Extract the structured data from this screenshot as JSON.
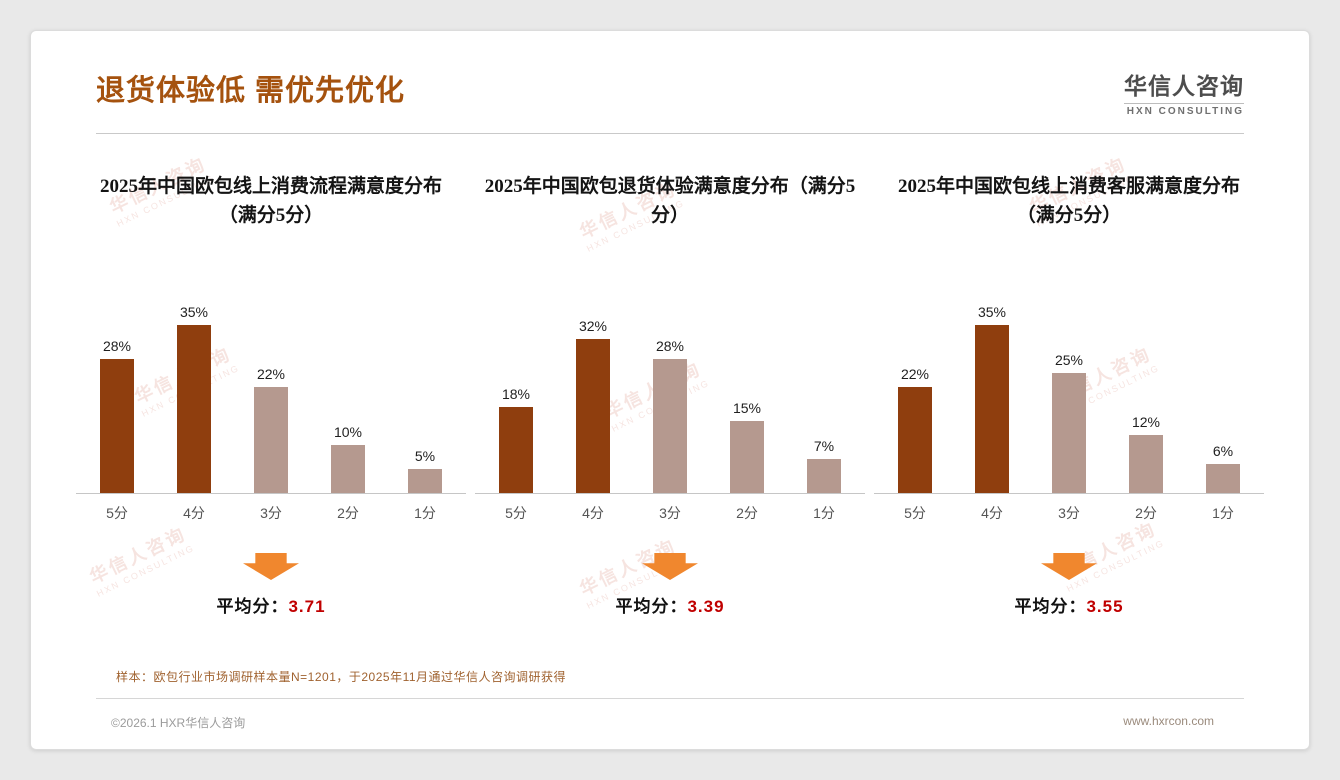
{
  "header": {
    "title": "退货体验低 需优先优化",
    "logo_name": "华信人咨询",
    "logo_sub": "HXN CONSULTING"
  },
  "labels": {
    "avg_prefix": "平均分："
  },
  "chart_data": [
    {
      "type": "bar",
      "title": "2025年中国欧包线上消费流程满意度分布（满分5分）",
      "categories": [
        "5分",
        "4分",
        "3分",
        "2分",
        "1分"
      ],
      "values": [
        28,
        35,
        22,
        10,
        5
      ],
      "unit": "%",
      "ylim": [
        0,
        40
      ],
      "average": "3.71"
    },
    {
      "type": "bar",
      "title": "2025年中国欧包退货体验满意度分布（满分5分）",
      "categories": [
        "5分",
        "4分",
        "3分",
        "2分",
        "1分"
      ],
      "values": [
        18,
        32,
        28,
        15,
        7
      ],
      "unit": "%",
      "ylim": [
        0,
        40
      ],
      "average": "3.39"
    },
    {
      "type": "bar",
      "title": "2025年中国欧包线上消费客服满意度分布（满分5分）",
      "categories": [
        "5分",
        "4分",
        "3分",
        "2分",
        "1分"
      ],
      "values": [
        22,
        35,
        25,
        12,
        6
      ],
      "unit": "%",
      "ylim": [
        0,
        40
      ],
      "average": "3.55"
    }
  ],
  "footnote": "样本：欧包行业市场调研样本量N=1201，于2025年11月通过华信人咨询调研获得",
  "footer": {
    "left": "©2026.1 HXR华信人咨询",
    "right": "www.hxrcon.com"
  },
  "watermark": {
    "line1": "华信人咨询",
    "line2": "HXN CONSULTING"
  },
  "colors": {
    "accent": "#A5520E",
    "bar_colors": [
      "#8F3E0E",
      "#8F3E0E",
      "#B5998F",
      "#B5998F",
      "#B5998F"
    ],
    "arrow": "#F0872E",
    "avg_value": "#C00000",
    "watermark": "#E9BCB4"
  }
}
